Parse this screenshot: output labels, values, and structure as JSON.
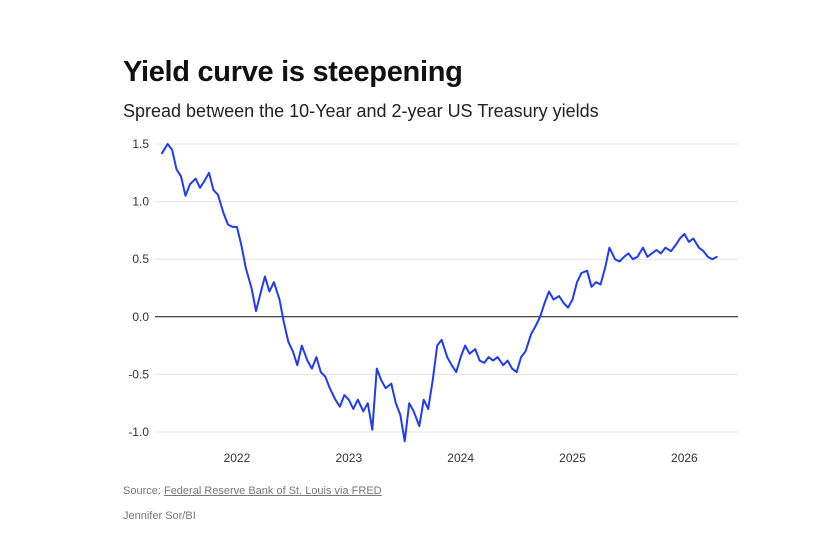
{
  "chart_data": {
    "type": "line",
    "title": "Yield curve is steepening",
    "subtitle": "Spread between the 10-Year and 2-year US Treasury yields",
    "xlabel": "",
    "ylabel": "",
    "ylim": [
      -1.1,
      1.5
    ],
    "xlim": [
      2021.33,
      2026.39
    ],
    "y_ticks": [
      "1.5",
      "1.0",
      "0.5",
      "0.0",
      "-0.5",
      "-1.0"
    ],
    "x_ticks": [
      "2022",
      "2023",
      "2024",
      "2025",
      "2026"
    ],
    "grid": true,
    "line_color": "#1f3cf0",
    "series": [
      {
        "name": "10Y-2Y spread",
        "x": [
          2021.33,
          2021.38,
          2021.42,
          2021.46,
          2021.5,
          2021.54,
          2021.58,
          2021.63,
          2021.67,
          2021.71,
          2021.75,
          2021.79,
          2021.83,
          2021.88,
          2021.92,
          2021.96,
          2022.0,
          2022.04,
          2022.08,
          2022.13,
          2022.17,
          2022.21,
          2022.25,
          2022.29,
          2022.33,
          2022.38,
          2022.42,
          2022.46,
          2022.5,
          2022.54,
          2022.58,
          2022.63,
          2022.67,
          2022.71,
          2022.75,
          2022.79,
          2022.83,
          2022.88,
          2022.92,
          2022.96,
          2023.0,
          2023.04,
          2023.08,
          2023.13,
          2023.17,
          2023.21,
          2023.25,
          2023.29,
          2023.33,
          2023.38,
          2023.42,
          2023.46,
          2023.5,
          2023.54,
          2023.58,
          2023.63,
          2023.67,
          2023.71,
          2023.75,
          2023.79,
          2023.83,
          2023.88,
          2023.92,
          2023.96,
          2024.0,
          2024.04,
          2024.08,
          2024.13,
          2024.17,
          2024.21,
          2024.25,
          2024.29,
          2024.33,
          2024.38,
          2024.42,
          2024.46,
          2024.5,
          2024.54,
          2024.58,
          2024.63,
          2024.67,
          2024.71,
          2024.75,
          2024.79,
          2024.83,
          2024.88,
          2024.92,
          2024.96,
          2025.0,
          2025.04,
          2025.08,
          2025.13,
          2025.17,
          2025.21,
          2025.25,
          2025.29,
          2025.33,
          2025.38,
          2025.42,
          2025.46,
          2025.5,
          2025.54,
          2025.58,
          2025.63,
          2025.67,
          2025.71,
          2025.75,
          2025.79,
          2025.83,
          2025.88,
          2025.92,
          2025.96,
          2026.0,
          2026.04,
          2026.08,
          2026.13,
          2026.17,
          2026.21,
          2026.25,
          2026.29
        ],
        "values": [
          1.42,
          1.5,
          1.45,
          1.28,
          1.22,
          1.05,
          1.15,
          1.2,
          1.12,
          1.18,
          1.25,
          1.1,
          1.06,
          0.9,
          0.8,
          0.78,
          0.78,
          0.62,
          0.42,
          0.25,
          0.05,
          0.2,
          0.35,
          0.22,
          0.3,
          0.15,
          -0.05,
          -0.22,
          -0.3,
          -0.42,
          -0.25,
          -0.38,
          -0.45,
          -0.35,
          -0.48,
          -0.52,
          -0.62,
          -0.72,
          -0.78,
          -0.68,
          -0.72,
          -0.8,
          -0.72,
          -0.82,
          -0.75,
          -0.98,
          -0.45,
          -0.55,
          -0.62,
          -0.58,
          -0.75,
          -0.85,
          -1.08,
          -0.75,
          -0.82,
          -0.95,
          -0.72,
          -0.8,
          -0.55,
          -0.25,
          -0.2,
          -0.35,
          -0.42,
          -0.48,
          -0.35,
          -0.25,
          -0.32,
          -0.28,
          -0.38,
          -0.4,
          -0.35,
          -0.38,
          -0.35,
          -0.42,
          -0.38,
          -0.45,
          -0.48,
          -0.35,
          -0.3,
          -0.15,
          -0.08,
          0.0,
          0.12,
          0.22,
          0.15,
          0.18,
          0.12,
          0.08,
          0.15,
          0.3,
          0.38,
          0.4,
          0.26,
          0.3,
          0.28,
          0.42,
          0.6,
          0.5,
          0.48,
          0.52,
          0.55,
          0.5,
          0.52,
          0.6,
          0.52,
          0.55,
          0.58,
          0.55,
          0.6,
          0.57,
          0.62,
          0.68,
          0.72,
          0.65,
          0.68,
          0.6,
          0.57,
          0.52,
          0.5,
          0.52
        ]
      }
    ]
  },
  "footer": {
    "source_prefix": "Source: ",
    "source_link": "Federal Reserve Bank of St. Louis via FRED",
    "credit": "Jennifer Sor/BI"
  }
}
